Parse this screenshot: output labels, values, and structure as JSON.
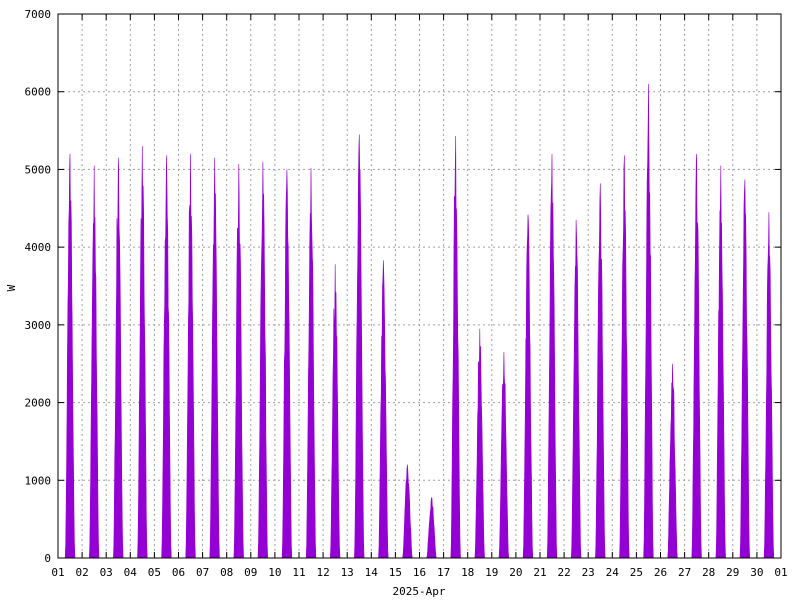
{
  "chart_data": {
    "type": "area",
    "title": "",
    "xlabel": "2025-Apr",
    "ylabel": "W",
    "ylim": [
      0,
      7000
    ],
    "yticks": [
      0,
      1000,
      2000,
      3000,
      4000,
      5000,
      6000,
      7000
    ],
    "xlim": [
      1,
      31
    ],
    "xticks": [
      "01",
      "02",
      "03",
      "04",
      "05",
      "06",
      "07",
      "08",
      "09",
      "10",
      "11",
      "12",
      "13",
      "14",
      "15",
      "16",
      "17",
      "18",
      "19",
      "20",
      "21",
      "22",
      "23",
      "24",
      "25",
      "26",
      "27",
      "28",
      "29",
      "30",
      "01"
    ],
    "grid": true,
    "legend": "none",
    "series": [
      {
        "color": "#9400d3",
        "daily_peaks": [
          {
            "day": "01",
            "peak": 5200
          },
          {
            "day": "02",
            "peak": 5050
          },
          {
            "day": "03",
            "peak": 5150
          },
          {
            "day": "04",
            "peak": 5300
          },
          {
            "day": "05",
            "peak": 5180
          },
          {
            "day": "06",
            "peak": 5200
          },
          {
            "day": "07",
            "peak": 5150
          },
          {
            "day": "08",
            "peak": 5070
          },
          {
            "day": "09",
            "peak": 5100
          },
          {
            "day": "10",
            "peak": 5000
          },
          {
            "day": "11",
            "peak": 5020
          },
          {
            "day": "12",
            "peak": 3780
          },
          {
            "day": "13",
            "peak": 5450
          },
          {
            "day": "14",
            "peak": 3830
          },
          {
            "day": "15",
            "peak": 1200
          },
          {
            "day": "16",
            "peak": 780
          },
          {
            "day": "17",
            "peak": 5430
          },
          {
            "day": "18",
            "peak": 2950
          },
          {
            "day": "19",
            "peak": 2650
          },
          {
            "day": "20",
            "peak": 4420
          },
          {
            "day": "21",
            "peak": 5200
          },
          {
            "day": "22",
            "peak": 4350
          },
          {
            "day": "23",
            "peak": 4820
          },
          {
            "day": "24",
            "peak": 5180
          },
          {
            "day": "25",
            "peak": 6100
          },
          {
            "day": "26",
            "peak": 2500
          },
          {
            "day": "27",
            "peak": 5200
          },
          {
            "day": "28",
            "peak": 5050
          },
          {
            "day": "29",
            "peak": 4870
          },
          {
            "day": "30",
            "peak": 4450
          }
        ]
      }
    ]
  }
}
